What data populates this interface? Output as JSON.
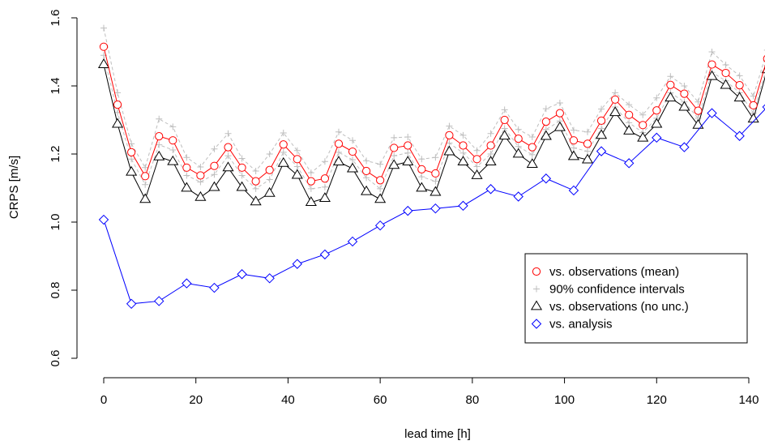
{
  "chart_data": {
    "type": "line",
    "title": "",
    "xlabel": "lead time [h]",
    "ylabel": "CRPS [m/s]",
    "xlim": [
      0,
      140
    ],
    "ylim": [
      0.6,
      1.6
    ],
    "xticks": [
      0,
      20,
      40,
      60,
      80,
      100,
      120,
      140
    ],
    "yticks": [
      0.6,
      0.8,
      1.0,
      1.2,
      1.4,
      1.6
    ],
    "xtick_labels": [
      "0",
      "20",
      "40",
      "60",
      "80",
      "100",
      "120",
      "140"
    ],
    "ytick_labels": [
      "0.6",
      "0.8",
      "1.0",
      "1.2",
      "1.4",
      "1.6"
    ],
    "grid": false,
    "legend_position": "lower-right",
    "x": [
      0,
      3,
      6,
      9,
      12,
      15,
      18,
      21,
      24,
      27,
      30,
      33,
      36,
      39,
      42,
      45,
      48,
      51,
      54,
      57,
      60,
      63,
      66,
      69,
      72,
      75,
      78,
      81,
      84,
      87,
      90,
      93,
      96,
      99,
      102,
      105,
      108,
      111,
      114,
      117,
      120,
      123,
      126,
      129,
      132,
      135,
      138,
      141,
      144
    ],
    "series": [
      {
        "name": "vs. observations (mean)",
        "color": "#ff0000",
        "marker": "circle",
        "line": "solid",
        "values": [
          1.515,
          1.345,
          1.205,
          1.135,
          1.252,
          1.24,
          1.16,
          1.137,
          1.165,
          1.22,
          1.16,
          1.12,
          1.153,
          1.228,
          1.185,
          1.12,
          1.128,
          1.23,
          1.207,
          1.15,
          1.123,
          1.218,
          1.225,
          1.155,
          1.143,
          1.255,
          1.225,
          1.185,
          1.225,
          1.3,
          1.245,
          1.22,
          1.295,
          1.32,
          1.24,
          1.23,
          1.298,
          1.36,
          1.315,
          1.285,
          1.328,
          1.403,
          1.377,
          1.327,
          1.463,
          1.438,
          1.402,
          1.343,
          1.48
        ]
      },
      {
        "name": "90% confidence intervals",
        "color": "#bebebe",
        "marker": "plus",
        "line": "dashed",
        "upper": [
          1.57,
          1.38,
          1.23,
          1.16,
          1.303,
          1.28,
          1.19,
          1.162,
          1.215,
          1.26,
          1.187,
          1.15,
          1.2,
          1.262,
          1.21,
          1.145,
          1.178,
          1.265,
          1.24,
          1.18,
          1.17,
          1.248,
          1.25,
          1.185,
          1.19,
          1.282,
          1.255,
          1.21,
          1.26,
          1.33,
          1.272,
          1.25,
          1.333,
          1.35,
          1.27,
          1.265,
          1.332,
          1.38,
          1.345,
          1.315,
          1.365,
          1.428,
          1.4,
          1.353,
          1.5,
          1.462,
          1.43,
          1.37,
          1.505
        ],
        "lower": [
          1.49,
          1.322,
          1.185,
          1.11,
          1.227,
          1.212,
          1.137,
          1.118,
          1.14,
          1.195,
          1.137,
          1.098,
          1.125,
          1.205,
          1.163,
          1.098,
          1.103,
          1.205,
          1.183,
          1.13,
          1.098,
          1.195,
          1.203,
          1.133,
          1.12,
          1.232,
          1.203,
          1.163,
          1.2,
          1.275,
          1.222,
          1.198,
          1.272,
          1.297,
          1.218,
          1.208,
          1.275,
          1.338,
          1.292,
          1.263,
          1.305,
          1.38,
          1.353,
          1.305,
          1.44,
          1.415,
          1.38,
          1.32,
          1.46
        ]
      },
      {
        "name": "vs. observations (no unc.)",
        "color": "#000000",
        "marker": "triangle",
        "line": "solid",
        "values": [
          1.463,
          1.288,
          1.147,
          1.067,
          1.192,
          1.178,
          1.1,
          1.073,
          1.102,
          1.16,
          1.102,
          1.06,
          1.085,
          1.173,
          1.138,
          1.058,
          1.07,
          1.177,
          1.157,
          1.09,
          1.067,
          1.167,
          1.177,
          1.1,
          1.088,
          1.207,
          1.177,
          1.137,
          1.177,
          1.253,
          1.2,
          1.17,
          1.252,
          1.278,
          1.193,
          1.183,
          1.255,
          1.322,
          1.268,
          1.247,
          1.288,
          1.365,
          1.338,
          1.285,
          1.428,
          1.402,
          1.365,
          1.303,
          1.448
        ]
      },
      {
        "name": "vs. analysis",
        "color": "#0000ff",
        "marker": "diamond",
        "line": "solid",
        "x": [
          0,
          6,
          12,
          18,
          24,
          30,
          36,
          42,
          48,
          54,
          60,
          66,
          72,
          78,
          84,
          90,
          96,
          102,
          108,
          114,
          120,
          126,
          132,
          138,
          144
        ],
        "values": [
          1.007,
          0.76,
          0.768,
          0.82,
          0.807,
          0.847,
          0.835,
          0.877,
          0.905,
          0.943,
          0.99,
          1.033,
          1.04,
          1.048,
          1.097,
          1.075,
          1.128,
          1.093,
          1.208,
          1.173,
          1.248,
          1.22,
          1.32,
          1.253,
          1.338
        ]
      }
    ]
  }
}
